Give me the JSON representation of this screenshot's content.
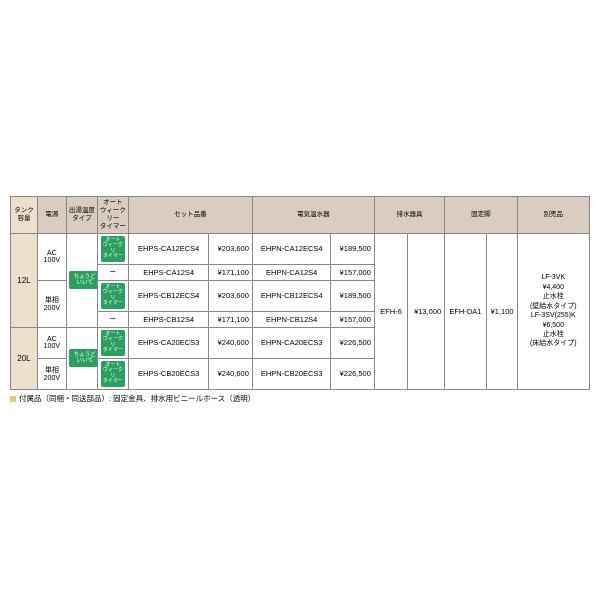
{
  "headers": {
    "tank": "タンク\n容量",
    "power": "電源",
    "temp_type": "出湯温度\nタイプ",
    "auto_timer": "オート\nウィークリー\nタイマー",
    "set_no": "セット品番",
    "heater": "電気温水器",
    "drain": "排水器具",
    "fix": "固定脚",
    "betsu": "別売品"
  },
  "tank": {
    "r12": "12L",
    "r20": "20L"
  },
  "power": {
    "ac100": "AC\n100V",
    "single200": "単相\n200V"
  },
  "badges": {
    "temp": "ちょうど\nいい℃",
    "timer": "オート\nウィークリ\nタイマー"
  },
  "rows": [
    {
      "set_no": "EHPS-CA12ECS4",
      "set_price": "¥203,600",
      "heater_no": "EHPN-CA12ECS4",
      "heater_price": "¥189,500"
    },
    {
      "set_no": "EHPS-CA12S4",
      "set_price": "¥171,100",
      "heater_no": "EHPN-CA12S4",
      "heater_price": "¥157,000"
    },
    {
      "set_no": "EHPS-CB12ECS4",
      "set_price": "¥203,600",
      "heater_no": "EHPN-CB12ECS4",
      "heater_price": "¥189,500"
    },
    {
      "set_no": "EHPS-CB12S4",
      "set_price": "¥171,100",
      "heater_no": "EHPN-CB12S4",
      "heater_price": "¥157,000"
    },
    {
      "set_no": "EHPS-CA20ECS3",
      "set_price": "¥240,600",
      "heater_no": "EHPN-CA20ECS3",
      "heater_price": "¥226,500"
    },
    {
      "set_no": "EHPS-CB20ECS3",
      "set_price": "¥240,600",
      "heater_no": "EHPN-CB20ECS3",
      "heater_price": "¥226,500"
    }
  ],
  "drain": {
    "model": "EFH-6",
    "price": "¥13,000"
  },
  "fix": {
    "model": "EFH-DA1",
    "price": "¥1,100"
  },
  "betsu": "LF-3VK\n¥4,400\n止水栓\n(壁給水タイプ)\nLF-3SV(255)K\n¥6,500\n止水栓\n(床給水タイプ)",
  "note": "付属品（同梱・同送部品）: 固定金具、排水用ビニールホース（透明）",
  "colors": {
    "header_bg": "#d9ccc0",
    "tank_bg": "#ede0cc",
    "badge_bg": "#28a060",
    "border": "#888888",
    "note_sq": "#e6c878"
  }
}
